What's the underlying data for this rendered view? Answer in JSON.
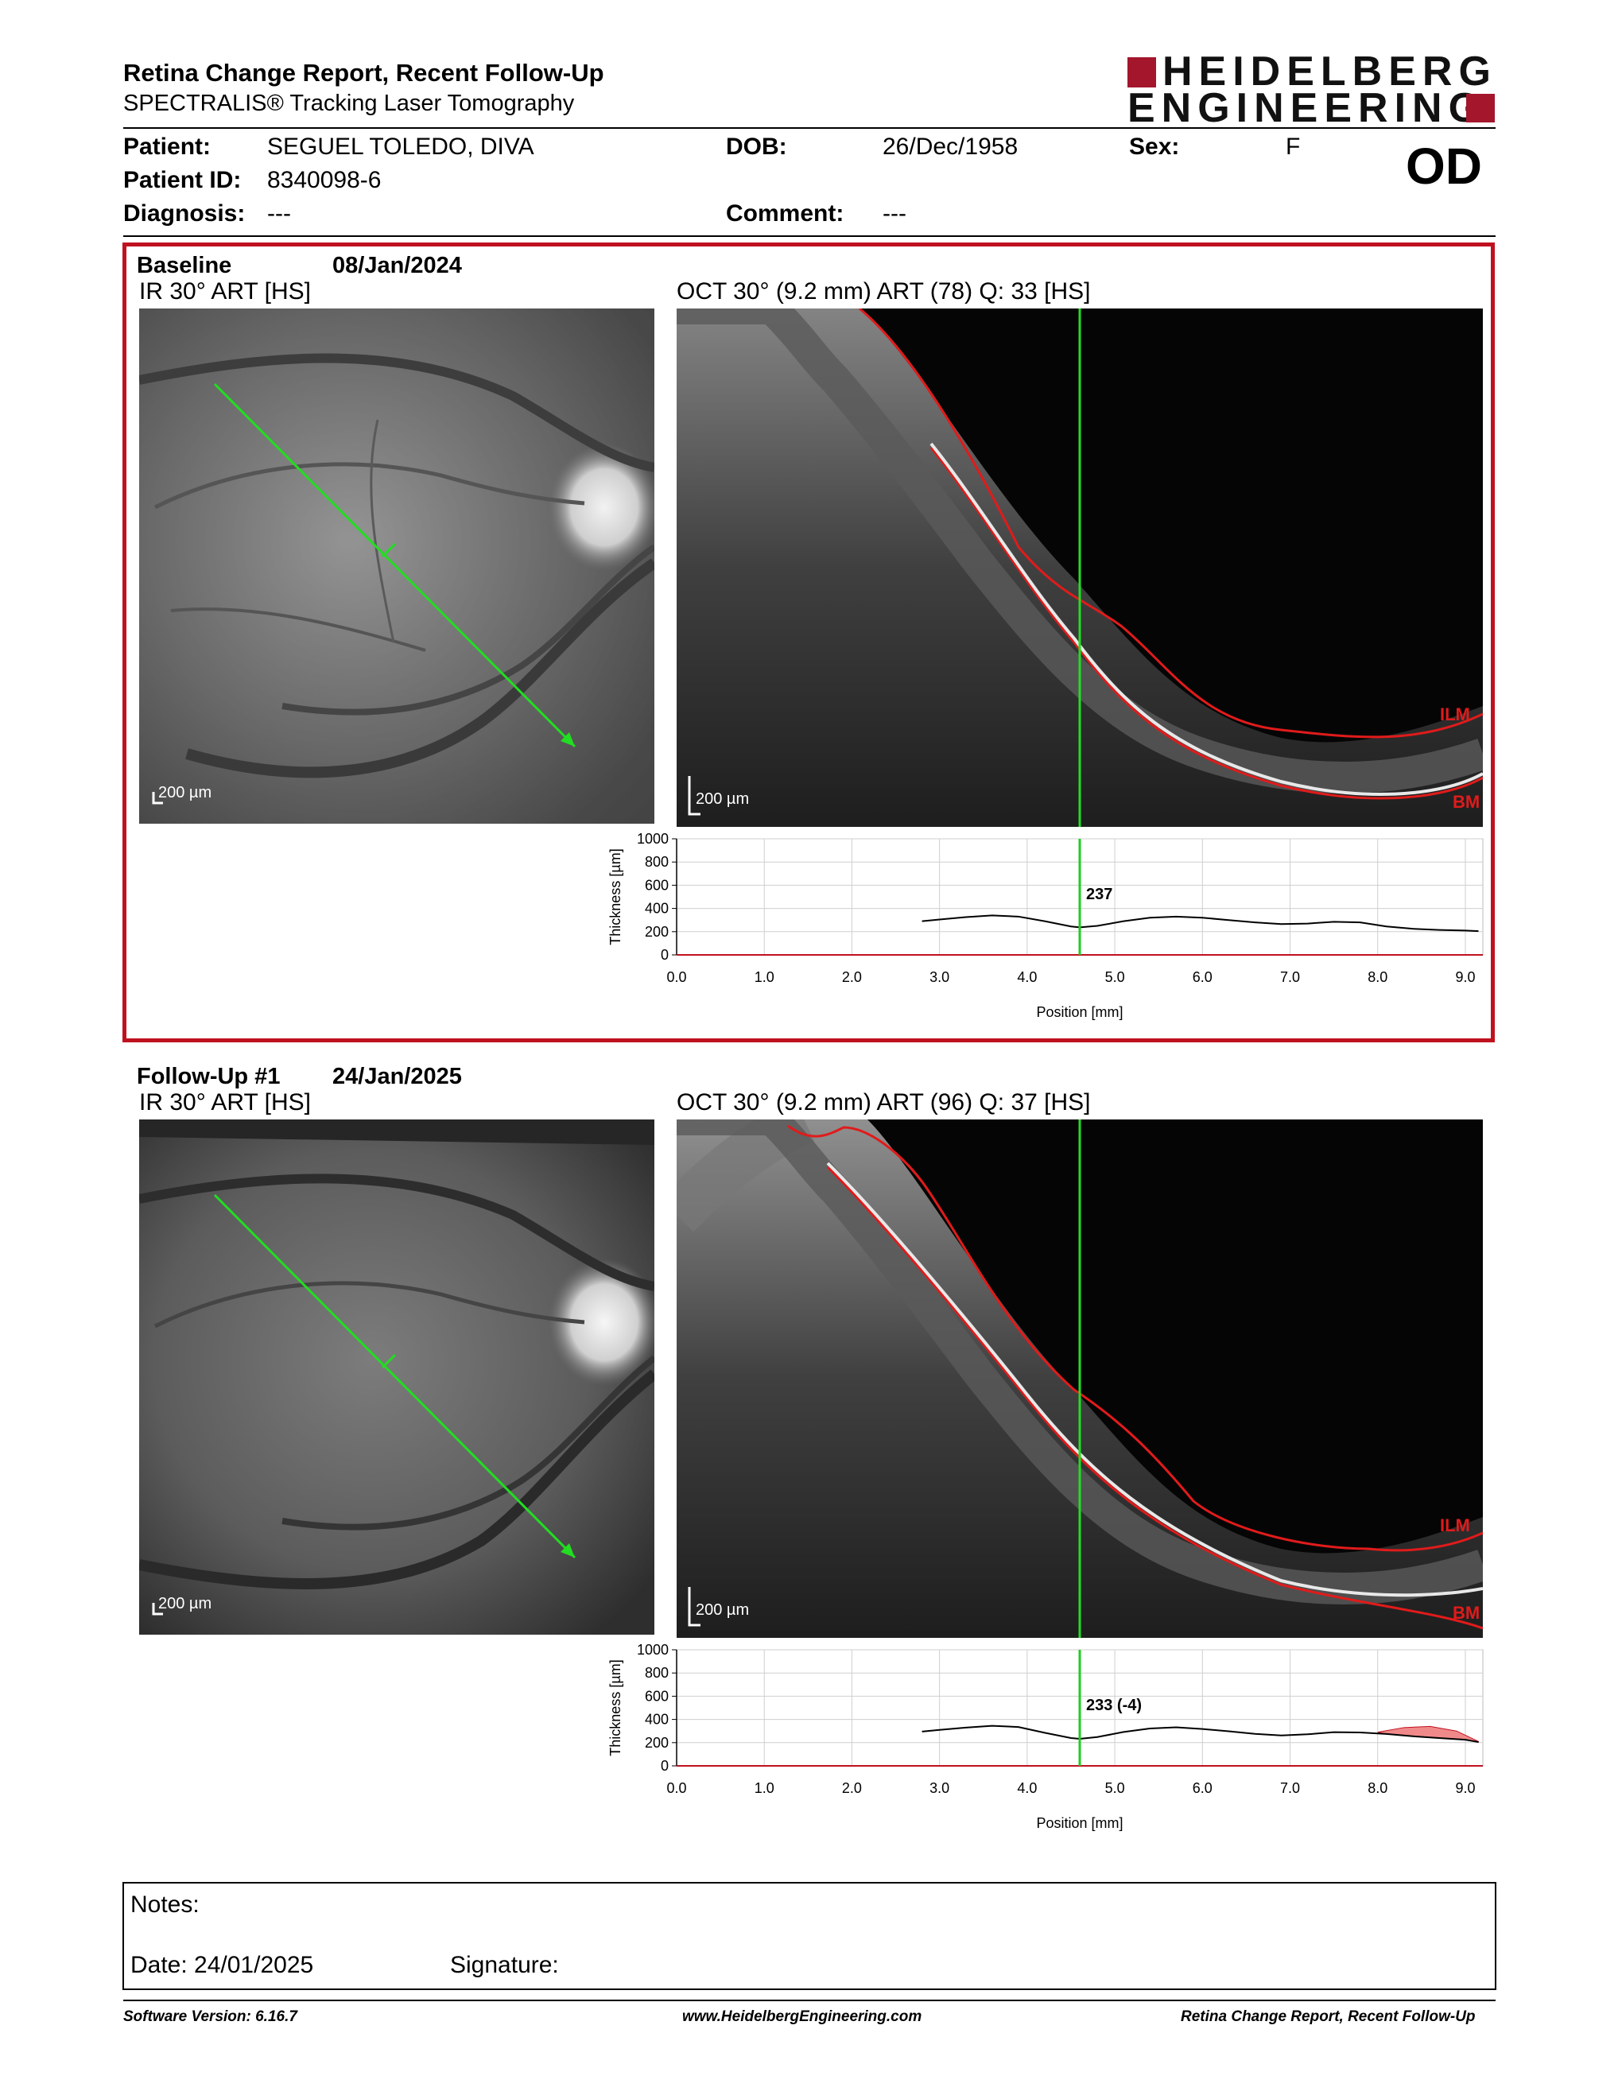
{
  "report": {
    "title": "Retina Change Report, Recent Follow-Up",
    "subtitle": "SPECTRALIS® Tracking Laser Tomography"
  },
  "logo": {
    "line1": "HEIDELBERG",
    "line2": "ENGINEERING",
    "brand_color": "#a3162c"
  },
  "patient": {
    "patient_label": "Patient:",
    "patient_value": "SEGUEL TOLEDO, DIVA",
    "id_label": "Patient ID:",
    "id_value": "8340098-6",
    "diagnosis_label": "Diagnosis:",
    "diagnosis_value": "---",
    "dob_label": "DOB:",
    "dob_value": "26/Dec/1958",
    "comment_label": "Comment:",
    "comment_value": "---",
    "sex_label": "Sex:",
    "sex_value": "F",
    "eye": "OD"
  },
  "baseline": {
    "name": "Baseline",
    "date": "08/Jan/2024",
    "ir_label": "IR 30° ART [HS]",
    "oct_label": "OCT 30° (9.2 mm) ART (78) Q: 33 [HS]",
    "ir_scale": "200 µm",
    "oct_scale": "200 µm",
    "ilm": "ILM",
    "bm": "BM",
    "thickness_value": "237",
    "frame_color": "#c0111f"
  },
  "followup": {
    "name": "Follow-Up #1",
    "date": "24/Jan/2025",
    "ir_label": "IR 30° ART [HS]",
    "oct_label": "OCT 30° (9.2 mm) ART (96) Q: 37 [HS]",
    "ir_scale": "200 µm",
    "oct_scale": "200 µm",
    "ilm": "ILM",
    "bm": "BM",
    "thickness_value": "233 (-4)"
  },
  "thickness_axis": {
    "ylabel": "Thickness [µm]",
    "xlabel": "Position [mm]",
    "yticks": [
      "1000",
      "800",
      "600",
      "400",
      "200",
      "0"
    ],
    "xticks": [
      "0.0",
      "1.0",
      "2.0",
      "3.0",
      "4.0",
      "5.0",
      "6.0",
      "7.0",
      "8.0",
      "9.0"
    ]
  },
  "chart_data": [
    {
      "type": "line",
      "title": "",
      "xlabel": "Position [mm]",
      "ylabel": "Thickness [µm]",
      "xlim": [
        0,
        9.2
      ],
      "ylim": [
        0,
        1000
      ],
      "cursor_x": 4.6,
      "cursor_value": 237,
      "series": [
        {
          "x": [
            2.8,
            3.0,
            3.3,
            3.6,
            3.9,
            4.2,
            4.5,
            4.6,
            4.8,
            5.1,
            5.4,
            5.7,
            6.0,
            6.3,
            6.6,
            6.9,
            7.2,
            7.5,
            7.8,
            8.1,
            8.4,
            8.7,
            9.0,
            9.15
          ],
          "values": [
            290,
            305,
            325,
            340,
            330,
            290,
            245,
            237,
            250,
            290,
            320,
            330,
            320,
            300,
            280,
            265,
            270,
            285,
            280,
            245,
            225,
            215,
            210,
            205
          ]
        }
      ]
    },
    {
      "type": "line",
      "title": "",
      "xlabel": "Position [mm]",
      "ylabel": "Thickness [µm]",
      "xlim": [
        0,
        9.2
      ],
      "ylim": [
        0,
        1000
      ],
      "cursor_x": 4.6,
      "cursor_value": 233,
      "cursor_change": -4,
      "series": [
        {
          "x": [
            2.8,
            3.0,
            3.3,
            3.6,
            3.9,
            4.2,
            4.5,
            4.6,
            4.8,
            5.1,
            5.4,
            5.7,
            6.0,
            6.3,
            6.6,
            6.9,
            7.2,
            7.5,
            7.8,
            8.1,
            8.4,
            8.7,
            9.0,
            9.15
          ],
          "values": [
            295,
            310,
            330,
            345,
            335,
            285,
            240,
            233,
            248,
            292,
            322,
            332,
            318,
            298,
            276,
            262,
            272,
            290,
            288,
            275,
            255,
            240,
            225,
            205
          ]
        },
        {
          "name_hidden": true,
          "x": [
            8.0,
            8.3,
            8.6,
            8.9,
            9.15
          ],
          "values": [
            290,
            330,
            340,
            300,
            210
          ]
        }
      ]
    }
  ],
  "notes": {
    "label": "Notes:",
    "date_label": "Date: 24/01/2025",
    "signature_label": "Signature:"
  },
  "footer": {
    "software": "Software Version: 6.16.7",
    "website": "www.HeidelbergEngineering.com",
    "report": "Retina Change Report, Recent Follow-Up"
  }
}
